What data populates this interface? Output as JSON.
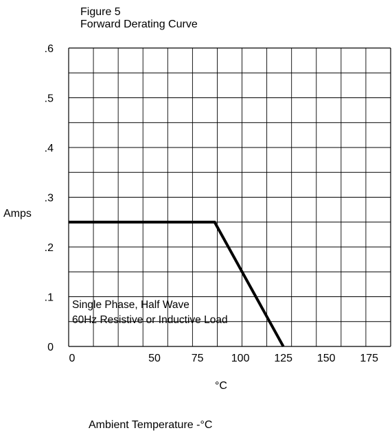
{
  "figure_number": "Figure 5",
  "chart_data": {
    "type": "line",
    "title": "Forward Derating Curve",
    "xlabel": "Ambient Temperature  -°C",
    "x_unit": "°C",
    "ylabel": "Amps",
    "xlim": [
      0,
      187.5
    ],
    "ylim": [
      0,
      0.6
    ],
    "x_ticks": [
      0,
      50,
      75,
      100,
      125,
      150,
      175
    ],
    "x_tick_labels": [
      "0",
      "50",
      "75",
      "100",
      "125",
      "150",
      "175"
    ],
    "y_ticks": [
      0,
      0.1,
      0.2,
      0.3,
      0.4,
      0.5,
      0.6
    ],
    "y_tick_labels": [
      "0",
      ".1",
      ".2",
      ".3",
      ".4",
      ".5",
      ".6"
    ],
    "grid": true,
    "grid_cols": 13,
    "grid_rows": 12,
    "series": [
      {
        "x": [
          0,
          85,
          125
        ],
        "y": [
          0.25,
          0.25,
          0.0
        ]
      }
    ],
    "annotation": {
      "lines": [
        "Single Phase, Half Wave",
        "60Hz Resistive or Inductive Load"
      ],
      "x": 2,
      "y": 0.077
    }
  }
}
